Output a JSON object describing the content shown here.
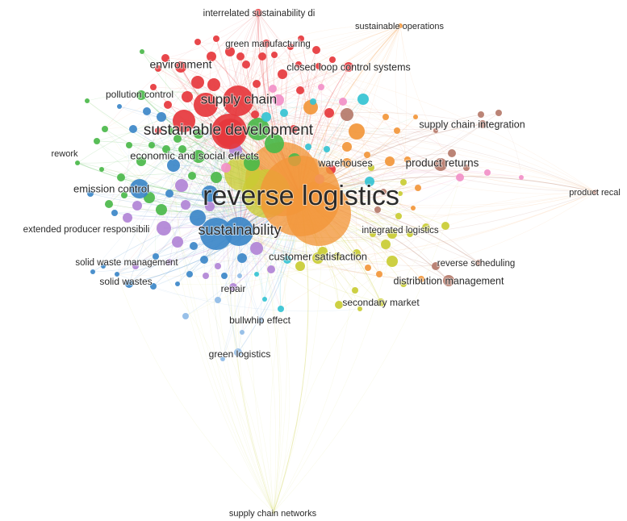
{
  "network": {
    "colors": {
      "red": "#e6373c",
      "orange": "#f2963a",
      "green": "#4bb84a",
      "blue": "#3c87c8",
      "purple": "#b184d6",
      "yellow": "#c9cc33",
      "cyan": "#35c3d3",
      "brown": "#b57a6a",
      "pink": "#f290c8",
      "lightblue": "#8fbbe6"
    },
    "keywords": [
      {
        "id": "reverse-logistics",
        "label": "reverse logistics",
        "cluster": "orange"
      },
      {
        "id": "sustainability",
        "label": "sustainability",
        "cluster": "blue"
      },
      {
        "id": "sustainable-development",
        "label": "sustainable development",
        "cluster": "red"
      },
      {
        "id": "supply-chain",
        "label": "supply chain",
        "cluster": "red"
      },
      {
        "id": "environment",
        "label": "environment",
        "cluster": "red"
      },
      {
        "id": "economic-and-social-effects",
        "label": "economic and social effects",
        "cluster": "green"
      },
      {
        "id": "emission-control",
        "label": "emission control",
        "cluster": "blue"
      },
      {
        "id": "pollution-control",
        "label": "pollution control",
        "cluster": "green"
      },
      {
        "id": "rework",
        "label": "rework",
        "cluster": "green"
      },
      {
        "id": "extended-producer-responsibility",
        "label": "extended producer responsibili",
        "cluster": "purple"
      },
      {
        "id": "solid-waste-management",
        "label": "solid waste management",
        "cluster": "purple"
      },
      {
        "id": "solid-wastes",
        "label": "solid wastes",
        "cluster": "blue"
      },
      {
        "id": "repair",
        "label": "repair",
        "cluster": "purple"
      },
      {
        "id": "bullwhip-effect",
        "label": "bullwhip effect",
        "cluster": "lightblue"
      },
      {
        "id": "green-logistics",
        "label": "green logistics",
        "cluster": "lightblue"
      },
      {
        "id": "supply-chain-networks",
        "label": "supply chain networks",
        "cluster": "yellow"
      },
      {
        "id": "customer-satisfaction",
        "label": "customer satisfaction",
        "cluster": "yellow"
      },
      {
        "id": "integrated-logistics",
        "label": "integrated logistics",
        "cluster": "yellow"
      },
      {
        "id": "secondary-market",
        "label": "secondary market",
        "cluster": "yellow"
      },
      {
        "id": "distribution-management",
        "label": "distribution management",
        "cluster": "brown"
      },
      {
        "id": "reverse-scheduling",
        "label": "reverse scheduling",
        "cluster": "brown"
      },
      {
        "id": "product-returns",
        "label": "product returns",
        "cluster": "brown"
      },
      {
        "id": "product-recall",
        "label": "product recal",
        "cluster": "brown"
      },
      {
        "id": "warehouses",
        "label": "warehouses",
        "cluster": "orange"
      },
      {
        "id": "supply-chain-integration",
        "label": "supply chain integration",
        "cluster": "brown"
      },
      {
        "id": "closed-loop-control-systems",
        "label": "closed loop control systems",
        "cluster": "red"
      },
      {
        "id": "green-manufacturing",
        "label": "green manufacturing",
        "cluster": "red"
      },
      {
        "id": "interrelated-sustainability",
        "label": "interrelated sustainability di",
        "cluster": "red"
      },
      {
        "id": "sustainable-operations",
        "label": "sustainable operations",
        "cluster": "orange"
      }
    ]
  }
}
